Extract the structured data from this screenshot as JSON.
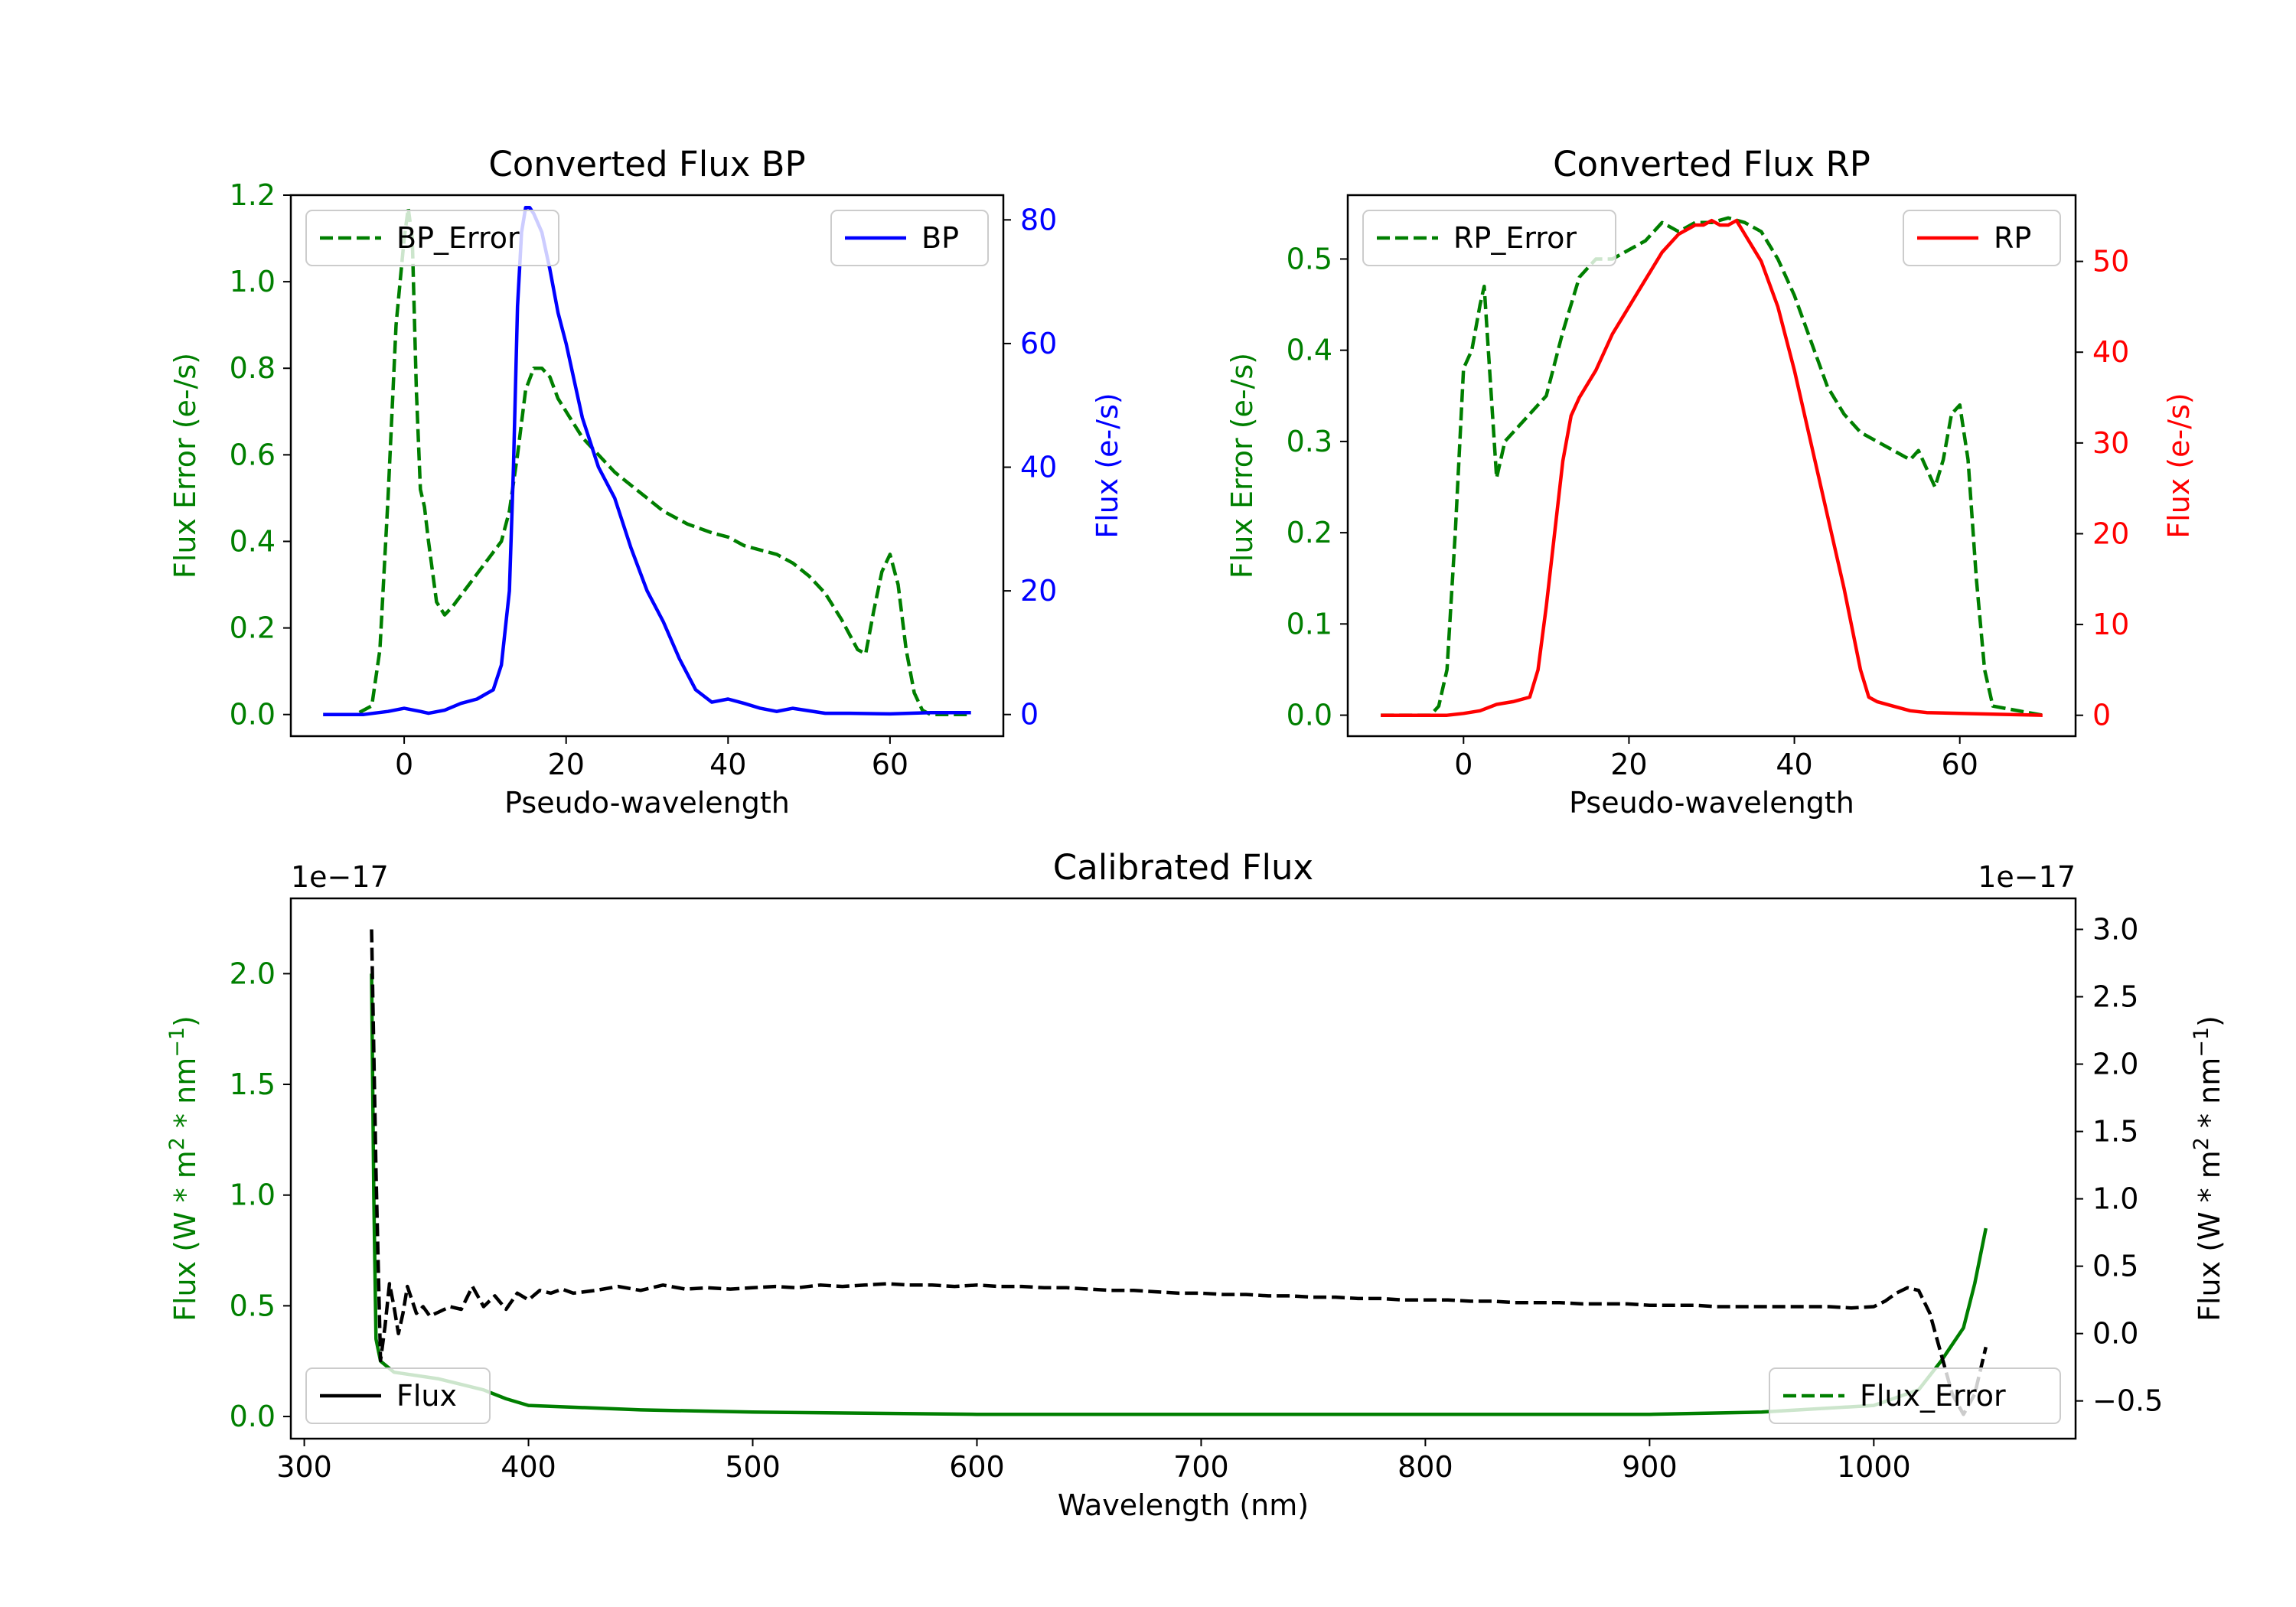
{
  "colors": {
    "bp": "#0000ff",
    "rp": "#ff0000",
    "error": "#007f00",
    "flux": "#000000",
    "axis": "#000000"
  },
  "chart_data": [
    {
      "id": "bp",
      "type": "line",
      "title": "Converted Flux BP",
      "xlabel": "Pseudo-wavelength",
      "ylabel_left": "Flux Error (e-/s)",
      "ylabel_right": "Flux (e-/s)",
      "xlim": [
        -14,
        74
      ],
      "ylim_left": [
        -0.05,
        1.2
      ],
      "ylim_right": [
        -3.5,
        84.0
      ],
      "xticks": [
        0,
        20,
        40,
        60
      ],
      "yticks_left": [
        "0.0",
        "0.2",
        "0.4",
        "0.6",
        "0.8",
        "1.0",
        "1.2"
      ],
      "yticks_right": [
        "0",
        "20",
        "40",
        "60",
        "80"
      ],
      "left_color": "error",
      "right_color": "bp",
      "legend_left": {
        "label": "BP_Error",
        "style": "dashed",
        "position": "upper left"
      },
      "legend_right": {
        "label": "BP",
        "style": "solid",
        "position": "upper right"
      },
      "series_left": {
        "name": "BP_Error",
        "x": [
          -10,
          -6,
          -4,
          -3,
          -2,
          -1,
          0,
          0.5,
          1,
          1.5,
          2,
          2.5,
          3,
          4,
          5,
          6,
          8,
          10,
          12,
          13,
          14,
          15,
          16,
          17,
          18,
          19,
          20,
          22,
          24,
          26,
          28,
          30,
          32,
          35,
          38,
          40,
          42,
          44,
          46,
          48,
          50,
          52,
          54,
          56,
          57,
          58,
          59,
          60,
          61,
          62,
          63,
          64,
          65,
          70
        ],
        "values": [
          0,
          0,
          0.02,
          0.15,
          0.5,
          0.9,
          1.1,
          1.17,
          1.1,
          0.75,
          0.52,
          0.48,
          0.4,
          0.26,
          0.23,
          0.25,
          0.3,
          0.35,
          0.4,
          0.47,
          0.6,
          0.75,
          0.8,
          0.8,
          0.78,
          0.73,
          0.7,
          0.64,
          0.6,
          0.56,
          0.53,
          0.5,
          0.47,
          0.44,
          0.42,
          0.41,
          0.39,
          0.38,
          0.37,
          0.35,
          0.32,
          0.28,
          0.22,
          0.15,
          0.14,
          0.24,
          0.33,
          0.37,
          0.3,
          0.15,
          0.05,
          0.01,
          0,
          0
        ]
      },
      "series_right": {
        "name": "BP",
        "x": [
          -10,
          -5,
          -2,
          0,
          2,
          3,
          5,
          7,
          9,
          11,
          12,
          13,
          13.5,
          14,
          14.5,
          15,
          15.5,
          16,
          17,
          18,
          19,
          20,
          22,
          24,
          26,
          28,
          30,
          32,
          34,
          36,
          38,
          40,
          42,
          44,
          46,
          48,
          50,
          52,
          55,
          60,
          65,
          70
        ],
        "values": [
          0,
          0,
          0.5,
          1.0,
          0.5,
          0.2,
          0.7,
          1.8,
          2.5,
          4,
          8,
          20,
          40,
          66,
          78,
          82,
          82,
          81,
          78,
          72,
          65,
          60,
          48,
          40,
          35,
          27,
          20,
          15,
          9,
          4,
          2,
          2.5,
          1.8,
          1.0,
          0.5,
          1.0,
          0.6,
          0.2,
          0.2,
          0.1,
          0.3,
          0.3
        ]
      }
    },
    {
      "id": "rp",
      "type": "line",
      "title": "Converted Flux RP",
      "xlabel": "Pseudo-wavelength",
      "ylabel_left": "Flux Error (e-/s)",
      "ylabel_right": "Flux (e-/s)",
      "xlim": [
        -14,
        74
      ],
      "ylim_left": [
        -0.023,
        0.57
      ],
      "ylim_right": [
        -2.3,
        57.3
      ],
      "xticks": [
        0,
        20,
        40,
        60
      ],
      "yticks_left": [
        "0.0",
        "0.1",
        "0.2",
        "0.3",
        "0.4",
        "0.5"
      ],
      "yticks_right": [
        "0",
        "10",
        "20",
        "30",
        "40",
        "50"
      ],
      "left_color": "error",
      "right_color": "rp",
      "legend_left": {
        "label": "RP_Error",
        "style": "dashed",
        "position": "upper left"
      },
      "legend_right": {
        "label": "RP",
        "style": "solid",
        "position": "upper right"
      },
      "series_left": {
        "name": "RP_Error",
        "x": [
          -10,
          -4,
          -3,
          -2,
          -1,
          0,
          1,
          2,
          2.5,
          3,
          4,
          5,
          6,
          8,
          10,
          12,
          14,
          16,
          18,
          20,
          22,
          24,
          26,
          28,
          30,
          32,
          34,
          36,
          38,
          40,
          42,
          44,
          46,
          48,
          50,
          52,
          54,
          55,
          56,
          57,
          58,
          59,
          60,
          61,
          62,
          63,
          64,
          70
        ],
        "values": [
          0,
          0,
          0.01,
          0.05,
          0.2,
          0.38,
          0.4,
          0.45,
          0.47,
          0.4,
          0.26,
          0.3,
          0.31,
          0.33,
          0.35,
          0.42,
          0.48,
          0.5,
          0.5,
          0.51,
          0.52,
          0.54,
          0.53,
          0.54,
          0.54,
          0.545,
          0.54,
          0.53,
          0.5,
          0.46,
          0.41,
          0.36,
          0.33,
          0.31,
          0.3,
          0.29,
          0.28,
          0.29,
          0.27,
          0.25,
          0.28,
          0.33,
          0.34,
          0.28,
          0.15,
          0.05,
          0.01,
          0
        ]
      },
      "series_right": {
        "name": "RP",
        "x": [
          -10,
          -2,
          0,
          2,
          4,
          6,
          8,
          9,
          10,
          11,
          12,
          13,
          14,
          16,
          18,
          20,
          22,
          24,
          26,
          28,
          29,
          30,
          31,
          32,
          33,
          34,
          36,
          38,
          40,
          42,
          44,
          46,
          48,
          49,
          50,
          52,
          54,
          56,
          60,
          65,
          70
        ],
        "values": [
          0,
          0,
          0.2,
          0.5,
          1.2,
          1.5,
          2,
          5,
          12,
          20,
          28,
          33,
          35,
          38,
          42,
          45,
          48,
          51,
          53,
          54,
          54,
          54.5,
          54,
          54,
          54.5,
          53,
          50,
          45,
          38,
          30,
          22,
          14,
          5,
          2,
          1.5,
          1,
          0.5,
          0.3,
          0.2,
          0.1,
          0
        ]
      }
    },
    {
      "id": "calibrated",
      "type": "line",
      "title": "Calibrated Flux",
      "xlabel": "Wavelength (nm)",
      "ylabel_left": "Flux (W * m$^2$ * nm$^{-1}$)",
      "ylabel_right": "Flux (W * m$^2$ * nm$^{-1}$)",
      "offset_left": "1e−17",
      "offset_right": "1e−17",
      "xlim": [
        294,
        1090
      ],
      "ylim_left": [
        -0.1,
        2.34
      ],
      "ylim_right": [
        -0.78,
        3.23
      ],
      "xticks": [
        300,
        400,
        500,
        600,
        700,
        800,
        900,
        1000
      ],
      "yticks_left": [
        "0.0",
        "0.5",
        "1.0",
        "1.5",
        "2.0"
      ],
      "yticks_right": [
        "−0.5",
        "0.0",
        "0.5",
        "1.0",
        "1.5",
        "2.0",
        "2.5",
        "3.0"
      ],
      "left_color": "error",
      "right_color": "flux",
      "legend_left": {
        "label": "Flux",
        "style": "solid",
        "position": "lower left"
      },
      "legend_right": {
        "label": "Flux_Error",
        "style": "dashed",
        "position": "lower right"
      },
      "series_left": {
        "name": "Flux_Error",
        "x": [
          330,
          331,
          332,
          334,
          340,
          360,
          380,
          390,
          400,
          450,
          500,
          550,
          600,
          640,
          700,
          800,
          900,
          950,
          1000,
          1020,
          1030,
          1040,
          1045,
          1050
        ],
        "values": [
          2.0,
          1.0,
          0.35,
          0.25,
          0.2,
          0.17,
          0.12,
          0.08,
          0.05,
          0.03,
          0.02,
          0.015,
          0.01,
          0.01,
          0.01,
          0.01,
          0.01,
          0.02,
          0.05,
          0.12,
          0.25,
          0.4,
          0.6,
          0.85
        ]
      },
      "series_right": {
        "name": "Flux",
        "x": [
          330,
          332,
          334,
          336,
          338,
          340,
          342,
          344,
          346,
          348,
          350,
          353,
          356,
          360,
          365,
          370,
          375,
          380,
          385,
          390,
          395,
          400,
          405,
          410,
          415,
          420,
          430,
          440,
          450,
          460,
          470,
          480,
          490,
          500,
          510,
          520,
          530,
          540,
          550,
          560,
          570,
          580,
          590,
          600,
          610,
          620,
          630,
          640,
          650,
          660,
          670,
          680,
          690,
          700,
          710,
          720,
          730,
          740,
          750,
          760,
          770,
          780,
          790,
          800,
          810,
          820,
          830,
          840,
          850,
          860,
          870,
          880,
          890,
          900,
          910,
          920,
          930,
          940,
          950,
          960,
          970,
          980,
          990,
          1000,
          1005,
          1010,
          1015,
          1020,
          1025,
          1030,
          1035,
          1040,
          1045,
          1050
        ],
        "values": [
          3.0,
          1.2,
          -0.2,
          0.05,
          0.37,
          0.2,
          0.0,
          0.15,
          0.35,
          0.25,
          0.15,
          0.2,
          0.13,
          0.16,
          0.2,
          0.18,
          0.35,
          0.2,
          0.28,
          0.18,
          0.3,
          0.25,
          0.32,
          0.3,
          0.33,
          0.3,
          0.32,
          0.35,
          0.32,
          0.36,
          0.33,
          0.34,
          0.33,
          0.34,
          0.35,
          0.34,
          0.36,
          0.35,
          0.36,
          0.37,
          0.36,
          0.36,
          0.35,
          0.36,
          0.35,
          0.35,
          0.34,
          0.34,
          0.33,
          0.32,
          0.32,
          0.31,
          0.3,
          0.3,
          0.29,
          0.29,
          0.28,
          0.28,
          0.27,
          0.27,
          0.26,
          0.26,
          0.25,
          0.25,
          0.25,
          0.24,
          0.24,
          0.23,
          0.23,
          0.23,
          0.22,
          0.22,
          0.22,
          0.21,
          0.21,
          0.21,
          0.2,
          0.2,
          0.2,
          0.2,
          0.2,
          0.2,
          0.19,
          0.2,
          0.24,
          0.3,
          0.34,
          0.32,
          0.15,
          -0.15,
          -0.45,
          -0.6,
          -0.45,
          -0.1
        ]
      }
    }
  ]
}
